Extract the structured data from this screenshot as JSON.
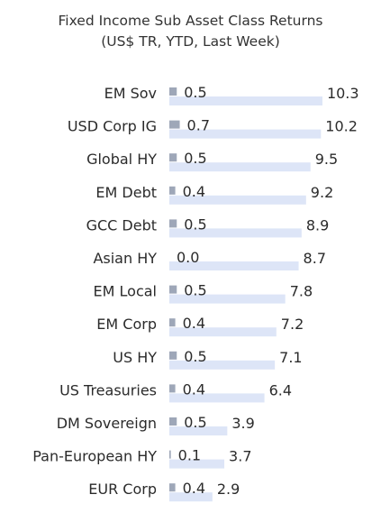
{
  "chart_data": {
    "type": "bar",
    "orientation": "horizontal",
    "title": "Fixed Income Sub Asset Class Returns",
    "subtitle": "(US$ TR, YTD, Last Week)",
    "categories": [
      "EM Sov",
      "USD Corp IG",
      "Global HY",
      "EM Debt",
      "GCC Debt",
      "Asian HY",
      "EM Local",
      "EM Corp",
      "US HY",
      "US Treasuries",
      "DM Sovereign",
      "Pan-European HY",
      "EUR Corp"
    ],
    "series": [
      {
        "values": [
          10.3,
          10.2,
          9.5,
          9.2,
          8.9,
          8.7,
          7.8,
          7.2,
          7.1,
          6.4,
          3.9,
          3.7,
          2.9
        ],
        "color": "#dde5f7"
      },
      {
        "values": [
          0.5,
          0.7,
          0.5,
          0.4,
          0.5,
          0.0,
          0.5,
          0.4,
          0.5,
          0.4,
          0.5,
          0.1,
          0.4
        ],
        "color": "#9ea7b8"
      }
    ],
    "value_labels": {
      "ytd": [
        "10.3",
        "10.2",
        "9.5",
        "9.2",
        "8.9",
        "8.7",
        "7.8",
        "7.2",
        "7.1",
        "6.4",
        "3.9",
        "3.7",
        "2.9"
      ],
      "last_week": [
        "0.5",
        "0.7",
        "0.5",
        "0.4",
        "0.5",
        "0.0",
        "0.5",
        "0.4",
        "0.5",
        "0.4",
        "0.5",
        "0.1",
        "0.4"
      ]
    },
    "xlim": [
      0,
      11
    ],
    "grid": false,
    "legend": "none"
  }
}
